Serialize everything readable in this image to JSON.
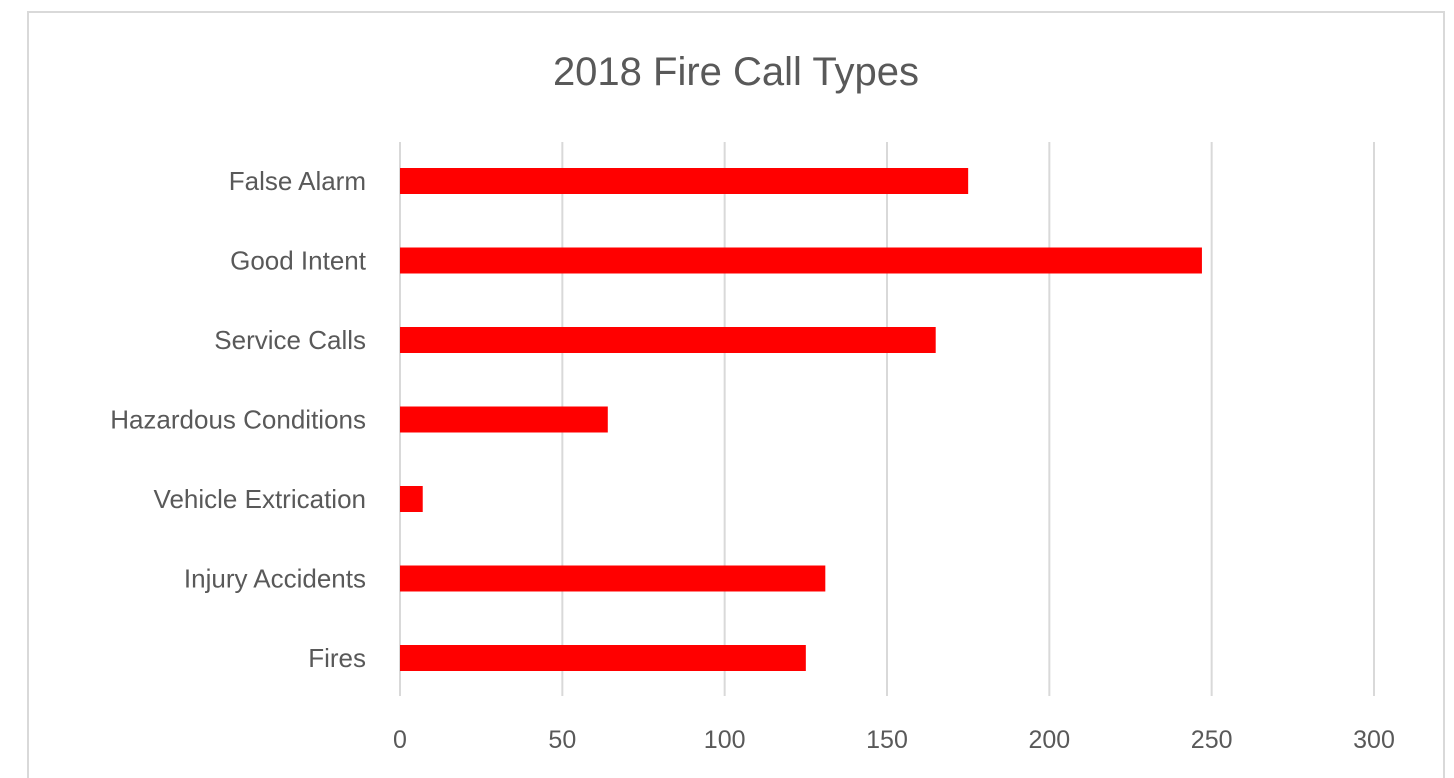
{
  "chart_data": {
    "type": "bar",
    "orientation": "horizontal",
    "title": "2018 Fire Call Types",
    "xlabel": "",
    "ylabel": "",
    "categories": [
      "False Alarm",
      "Good Intent",
      "Service Calls",
      "Hazardous Conditions",
      "Vehicle Extrication",
      "Injury Accidents",
      "Fires"
    ],
    "values": [
      175,
      247,
      165,
      64,
      7,
      131,
      125
    ],
    "xlim": [
      0,
      300
    ],
    "xticks": [
      0,
      50,
      100,
      150,
      200,
      250,
      300
    ],
    "grid": "vertical",
    "legend": "none",
    "colors": {
      "bar": "#ff0000",
      "grid": "#d9d9d9",
      "text": "#595959",
      "border": "#d9d9d9"
    }
  }
}
